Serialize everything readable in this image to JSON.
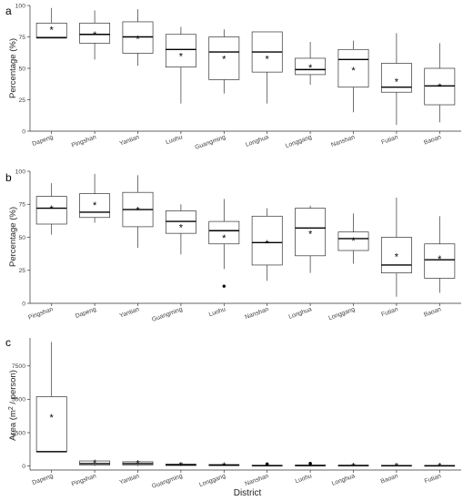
{
  "xlabel": "District",
  "chart_data": [
    {
      "type": "box",
      "panel": "a",
      "ylabel": "Percentage (%)",
      "ylim": [
        0,
        100
      ],
      "yticks": [
        0,
        25,
        50,
        75,
        100
      ],
      "categories": [
        "Dapeng",
        "Pingshan",
        "Yantian",
        "Luohu",
        "Guangming",
        "Longhua",
        "Longgang",
        "Nanshan",
        "Futian",
        "Baoan"
      ],
      "boxes": [
        {
          "whislo": 74,
          "q1": 74,
          "med": 74.5,
          "q3": 86,
          "whishi": 98,
          "mean": 81
        },
        {
          "whislo": 57,
          "q1": 70,
          "med": 77,
          "q3": 86,
          "whishi": 96,
          "mean": 77
        },
        {
          "whislo": 52,
          "q1": 62,
          "med": 75,
          "q3": 87,
          "whishi": 97,
          "mean": 74
        },
        {
          "whislo": 22,
          "q1": 51,
          "med": 65,
          "q3": 77,
          "whishi": 83,
          "mean": 60
        },
        {
          "whislo": 30,
          "q1": 41,
          "med": 63,
          "q3": 75,
          "whishi": 81,
          "mean": 58
        },
        {
          "whislo": 22,
          "q1": 47,
          "med": 63,
          "q3": 79,
          "whishi": 79,
          "mean": 58
        },
        {
          "whislo": 37,
          "q1": 45,
          "med": 49,
          "q3": 58,
          "whishi": 71,
          "mean": 51
        },
        {
          "whislo": 15,
          "q1": 35,
          "med": 57,
          "q3": 65,
          "whishi": 72,
          "mean": 49
        },
        {
          "whislo": 5,
          "q1": 31,
          "med": 35,
          "q3": 54,
          "whishi": 78,
          "mean": 40
        },
        {
          "whislo": 7,
          "q1": 21,
          "med": 36,
          "q3": 50,
          "whishi": 70,
          "mean": 36
        }
      ],
      "outliers": []
    },
    {
      "type": "box",
      "panel": "b",
      "ylabel": "Percentage (%)",
      "ylim": [
        0,
        100
      ],
      "yticks": [
        0,
        25,
        50,
        75,
        100
      ],
      "categories": [
        "Pingshan",
        "Dapeng",
        "Yantian",
        "Guangming",
        "Luohu",
        "Nanshan",
        "Longhua",
        "Longgang",
        "Futian",
        "Baoan"
      ],
      "boxes": [
        {
          "whislo": 52,
          "q1": 60,
          "med": 72,
          "q3": 81,
          "whishi": 91,
          "mean": 72
        },
        {
          "whislo": 61,
          "q1": 65,
          "med": 69,
          "q3": 83,
          "whishi": 98,
          "mean": 75
        },
        {
          "whislo": 42,
          "q1": 58,
          "med": 71,
          "q3": 84,
          "whishi": 97,
          "mean": 71
        },
        {
          "whislo": 37,
          "q1": 53,
          "med": 62,
          "q3": 70,
          "whishi": 75,
          "mean": 58
        },
        {
          "whislo": 26,
          "q1": 45,
          "med": 55,
          "q3": 62,
          "whishi": 79,
          "mean": 50
        },
        {
          "whislo": 17,
          "q1": 29,
          "med": 46,
          "q3": 66,
          "whishi": 72,
          "mean": 46
        },
        {
          "whislo": 23,
          "q1": 36,
          "med": 57,
          "q3": 72,
          "whishi": 74,
          "mean": 53
        },
        {
          "whislo": 30,
          "q1": 40,
          "med": 49,
          "q3": 54,
          "whishi": 68,
          "mean": 48
        },
        {
          "whislo": 5,
          "q1": 23,
          "med": 29,
          "q3": 50,
          "whishi": 80,
          "mean": 36
        },
        {
          "whislo": 8,
          "q1": 19,
          "med": 33,
          "q3": 45,
          "whishi": 66,
          "mean": 34
        }
      ],
      "outliers": [
        {
          "category_index": 4,
          "value": 13
        }
      ]
    },
    {
      "type": "box",
      "panel": "c",
      "ylabel": "Area (m2 / person)",
      "ylim": [
        -300,
        9600
      ],
      "yticks": [
        0,
        2500,
        5000,
        7500
      ],
      "categories": [
        "Dapeng",
        "Pingshan",
        "Yantian",
        "Guangming",
        "Longgang",
        "Nanshan",
        "Luohu",
        "Longhua",
        "Baoan",
        "Futian"
      ],
      "boxes": [
        {
          "whislo": 1050,
          "q1": 1050,
          "med": 1080,
          "q3": 5200,
          "whishi": 9300,
          "mean": 3700
        },
        {
          "whislo": 0,
          "q1": 80,
          "med": 180,
          "q3": 380,
          "whishi": 380,
          "mean": 280
        },
        {
          "whislo": 0,
          "q1": 80,
          "med": 180,
          "q3": 320,
          "whishi": 320,
          "mean": 250
        },
        {
          "whislo": 0,
          "q1": 40,
          "med": 90,
          "q3": 140,
          "whishi": 160,
          "mean": 100
        },
        {
          "whislo": 0,
          "q1": 30,
          "med": 70,
          "q3": 110,
          "whishi": 140,
          "mean": 80
        },
        {
          "whislo": 0,
          "q1": 10,
          "med": 30,
          "q3": 60,
          "whishi": 80,
          "mean": 40
        },
        {
          "whislo": 0,
          "q1": 10,
          "med": 40,
          "q3": 70,
          "whishi": 90,
          "mean": 50
        },
        {
          "whislo": 0,
          "q1": 15,
          "med": 35,
          "q3": 60,
          "whishi": 80,
          "mean": 40
        },
        {
          "whislo": 0,
          "q1": 10,
          "med": 25,
          "q3": 50,
          "whishi": 70,
          "mean": 35
        },
        {
          "whislo": 0,
          "q1": 5,
          "med": 20,
          "q3": 40,
          "whishi": 60,
          "mean": 30
        }
      ],
      "outliers": [
        {
          "category_index": 5,
          "value": 160
        },
        {
          "category_index": 6,
          "value": 200
        }
      ]
    }
  ]
}
